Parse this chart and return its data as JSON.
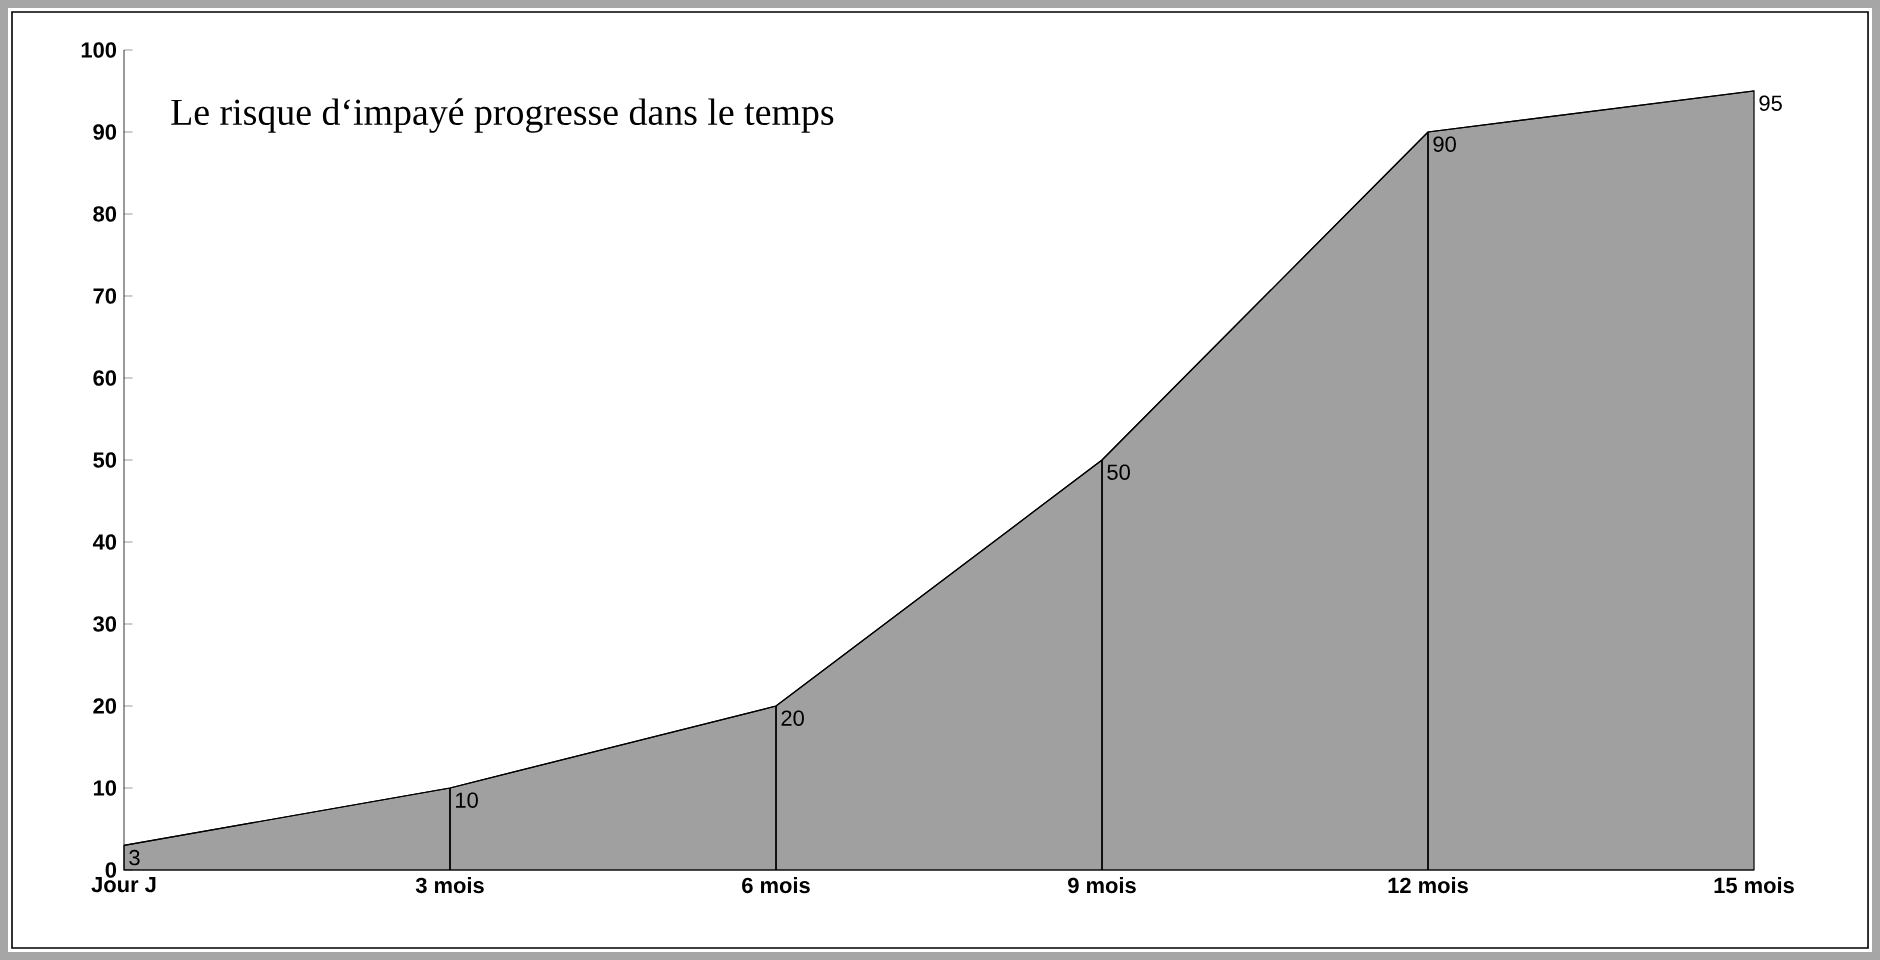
{
  "chart_data": {
    "type": "area",
    "title": "Le risque d‘impayé progresse dans le temps",
    "categories": [
      "Jour J",
      "3 mois",
      "6 mois",
      "9 mois",
      "12 mois",
      "15 mois"
    ],
    "values": [
      3,
      10,
      20,
      50,
      90,
      95
    ],
    "color": "#a0a0a0",
    "ylim": [
      0,
      100
    ],
    "yticks": [
      0,
      10,
      20,
      30,
      40,
      50,
      60,
      70,
      80,
      90,
      100
    ],
    "errors": [
      null,
      [
        0,
        10
      ],
      [
        0,
        20
      ],
      [
        0,
        50
      ],
      [
        0,
        90
      ],
      null
    ],
    "data_labels": true
  }
}
